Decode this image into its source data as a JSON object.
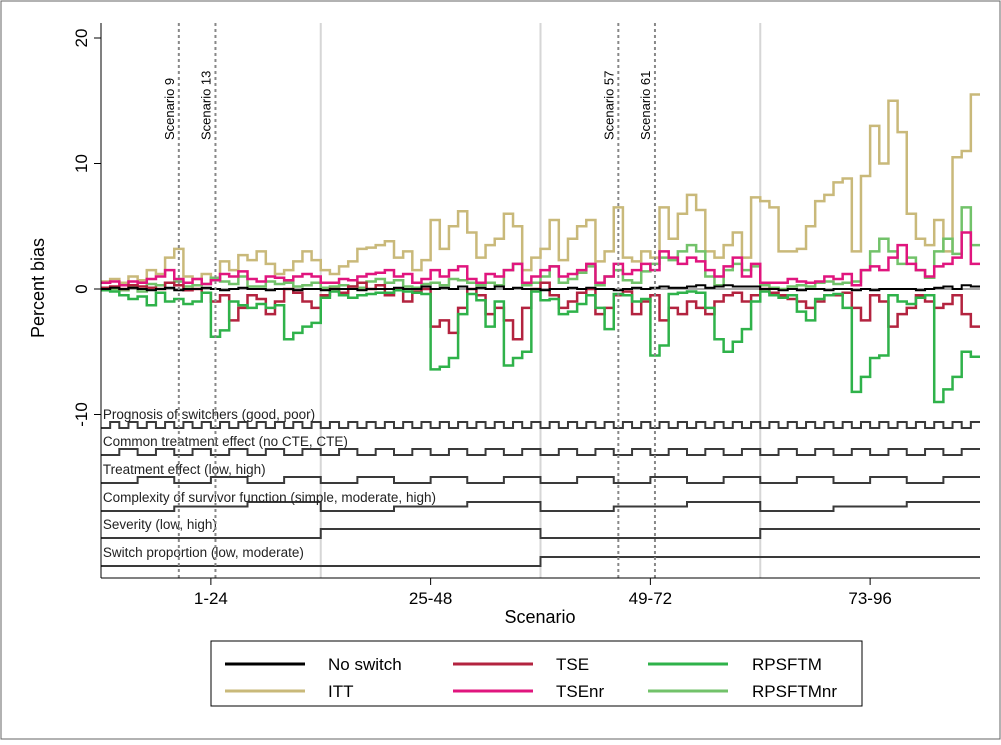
{
  "chart_data": {
    "type": "line",
    "step": true,
    "xlabel": "Scenario",
    "ylabel": "Percent bias",
    "xlim": [
      0.5,
      96.5
    ],
    "ylim": [
      -11,
      21
    ],
    "yticks": [
      -10,
      0,
      10,
      20
    ],
    "yticklabels": [
      "-10",
      "0",
      "10",
      "20"
    ],
    "xtick_groups": [
      {
        "label": "1-24",
        "center": 12.5
      },
      {
        "label": "25-48",
        "center": 36.5
      },
      {
        "label": "49-72",
        "center": 60.5
      },
      {
        "label": "73-96",
        "center": 84.5
      }
    ],
    "group_separators": [
      24.5,
      48.5,
      72.5
    ],
    "scenario_markers": [
      {
        "label": "Scenario 9",
        "x": 9
      },
      {
        "label": "Scenario 13",
        "x": 13
      },
      {
        "label": "Scenario 57",
        "x": 57
      },
      {
        "label": "Scenario 61",
        "x": 61
      }
    ],
    "nested_factors": [
      {
        "label": "Prognosis of switchers (good, poor)",
        "period": 1,
        "levels": 2
      },
      {
        "label": "Common treatment effect (no CTE, CTE)",
        "period": 2,
        "levels": 2
      },
      {
        "label": "Treatment effect (low, high)",
        "period": 4,
        "levels": 2
      },
      {
        "label": "Complexity of survivor function (simple, moderate, high)",
        "period": 8,
        "levels": 3
      },
      {
        "label": "Severity (low, high)",
        "period": 24,
        "levels": 2
      },
      {
        "label": "Switch proportion (low, moderate)",
        "period": 48,
        "levels": 2
      }
    ],
    "colors": {
      "No switch": "#000000",
      "ITT": "#c9b97a",
      "TSE": "#b3233f",
      "TSEnr": "#e0157e",
      "RPSFTM": "#2fb24a",
      "RPSFTMnr": "#72c26a"
    },
    "legend": {
      "placement": "bottom",
      "columns": 3,
      "entries": [
        "No switch",
        "TSE",
        "RPSFTM",
        "ITT",
        "TSEnr",
        "RPSFTMnr"
      ]
    },
    "series": [
      {
        "name": "No switch",
        "values": [
          0.0,
          0.1,
          0.0,
          0.1,
          0.0,
          -0.1,
          0.0,
          0.1,
          -0.1,
          0.0,
          0.0,
          0.1,
          0.0,
          -0.1,
          0.0,
          0.1,
          0.0,
          0.0,
          -0.1,
          0.0,
          0.0,
          -0.1,
          0.0,
          0.0,
          -0.1,
          0.0,
          0.0,
          0.0,
          -0.1,
          0.0,
          0.0,
          0.0,
          0.1,
          0.0,
          0.0,
          0.2,
          0.0,
          0.1,
          0.0,
          0.2,
          0.0,
          0.1,
          0.0,
          0.2,
          0.0,
          0.1,
          0.0,
          0.0,
          -0.1,
          0.0,
          0.0,
          0.1,
          0.0,
          0.1,
          0.0,
          0.0,
          -0.1,
          0.0,
          0.1,
          0.0,
          0.1,
          0.2,
          0.1,
          0.1,
          0.2,
          0.3,
          0.1,
          0.2,
          0.3,
          0.2,
          0.2,
          0.2,
          0.0,
          0.0,
          -0.1,
          0.0,
          -0.1,
          0.0,
          0.0,
          -0.1,
          0.0,
          0.0,
          -0.1,
          0.0,
          -0.1,
          0.0,
          0.0,
          0.0,
          0.0,
          -0.1,
          0.0,
          0.1,
          0.2,
          0.0,
          0.3,
          0.2
        ]
      },
      {
        "name": "ITT",
        "values": [
          0.6,
          0.8,
          0.5,
          1.0,
          0.7,
          1.5,
          1.2,
          2.5,
          3.2,
          1.0,
          0.8,
          1.2,
          0.9,
          2.2,
          1.5,
          2.7,
          2.3,
          3.0,
          2.0,
          1.2,
          1.5,
          2.2,
          3.0,
          2.3,
          1.5,
          1.2,
          1.8,
          2.2,
          3.2,
          3.3,
          3.5,
          3.8,
          2.5,
          3.0,
          1.5,
          2.3,
          5.5,
          3.2,
          5.0,
          6.2,
          4.5,
          2.5,
          3.5,
          4.0,
          6.0,
          5.0,
          1.5,
          2.5,
          3.2,
          5.5,
          2.3,
          4.0,
          5.0,
          5.5,
          2.2,
          3.0,
          6.5,
          2.5,
          2.2,
          3.0,
          2.5,
          6.5,
          4.0,
          6.0,
          7.5,
          6.3,
          3.0,
          2.5,
          3.5,
          4.5,
          2.5,
          7.3,
          7.0,
          6.5,
          3.0,
          3.0,
          3.2,
          5.0,
          7.0,
          7.5,
          8.5,
          8.8,
          3.0,
          9.0,
          13.0,
          10.0,
          15.0,
          12.5,
          6.0,
          4.0,
          3.5,
          5.5,
          3.0,
          10.5,
          11.0,
          15.5
        ]
      },
      {
        "name": "TSE",
        "values": [
          0.1,
          0.2,
          0.0,
          0.3,
          0.2,
          0.1,
          0.0,
          0.5,
          0.3,
          -0.1,
          0.0,
          -0.3,
          -1.0,
          -0.5,
          -2.5,
          -1.5,
          -0.5,
          -0.8,
          -2.0,
          -1.0,
          0.0,
          -0.3,
          -1.0,
          -1.5,
          -0.5,
          0.0,
          -0.3,
          0.2,
          0.5,
          0.0,
          0.3,
          -0.5,
          0.0,
          -1.0,
          -0.2,
          0.0,
          -3.0,
          -2.5,
          -3.5,
          -1.5,
          0.0,
          -0.5,
          -2.0,
          -1.5,
          -2.5,
          -4.0,
          -1.5,
          0.0,
          0.5,
          -0.5,
          -1.5,
          -1.0,
          -0.3,
          0.0,
          -2.0,
          -1.5,
          -0.5,
          -0.2,
          -2.0,
          -1.0,
          -0.5,
          -2.5,
          -1.5,
          -2.0,
          -1.0,
          -1.5,
          -2.0,
          -1.0,
          -0.5,
          -0.3,
          -1.0,
          -0.5,
          0.0,
          -0.3,
          -0.5,
          -0.8,
          -1.0,
          -1.5,
          -1.0,
          -0.5,
          -0.5,
          -0.3,
          -1.5,
          -2.5,
          -0.5,
          -1.0,
          -3.0,
          -2.0,
          -1.5,
          -0.5,
          -1.0,
          -1.5,
          -1.2,
          -0.5,
          -2.0,
          -3.0
        ]
      },
      {
        "name": "TSEnr",
        "values": [
          0.5,
          0.6,
          0.3,
          0.6,
          0.5,
          0.8,
          1.0,
          1.5,
          0.8,
          0.5,
          0.8,
          0.4,
          0.7,
          1.2,
          1.0,
          1.4,
          0.8,
          0.6,
          1.0,
          0.9,
          0.7,
          1.0,
          1.2,
          1.0,
          0.5,
          0.5,
          0.8,
          0.7,
          1.0,
          1.2,
          1.3,
          1.5,
          1.0,
          1.2,
          0.5,
          0.8,
          1.5,
          1.0,
          1.5,
          1.8,
          0.8,
          0.5,
          1.2,
          1.0,
          1.5,
          2.0,
          0.5,
          1.0,
          1.5,
          1.8,
          1.0,
          1.2,
          1.5,
          2.0,
          0.5,
          1.0,
          2.0,
          1.2,
          1.5,
          2.0,
          1.5,
          3.0,
          2.5,
          2.0,
          2.5,
          2.2,
          1.5,
          1.0,
          1.8,
          2.5,
          1.0,
          2.0,
          0.5,
          0.5,
          0.5,
          0.8,
          0.6,
          0.5,
          0.6,
          1.0,
          0.8,
          1.2,
          0.3,
          1.5,
          1.8,
          1.5,
          2.5,
          3.5,
          2.0,
          1.5,
          1.0,
          1.8,
          2.0,
          2.5,
          4.5,
          2.0
        ]
      },
      {
        "name": "RPSFTM",
        "values": [
          -0.1,
          -0.2,
          -0.5,
          -0.8,
          -0.6,
          -1.3,
          -0.3,
          -1.0,
          -0.8,
          -1.2,
          -1.0,
          -0.3,
          -3.8,
          -3.3,
          -1.0,
          -1.3,
          -1.5,
          -1.2,
          -1.5,
          -1.3,
          -4.0,
          -3.5,
          -3.0,
          -2.7,
          -0.7,
          -0.2,
          -0.5,
          -0.7,
          -0.5,
          -0.4,
          -0.3,
          -0.3,
          -0.1,
          -0.2,
          -0.3,
          -0.4,
          -6.4,
          -6.2,
          -5.5,
          -2.0,
          -0.4,
          -0.9,
          -3.0,
          -1.0,
          -6.1,
          -5.5,
          -5.0,
          -0.2,
          -0.9,
          -0.8,
          -2.0,
          -1.8,
          -1.2,
          -0.5,
          -1.5,
          -3.2,
          -0.4,
          -0.5,
          -1.0,
          -0.8,
          -5.3,
          -4.5,
          -0.4,
          -0.3,
          -0.2,
          -0.3,
          -1.5,
          -4.0,
          -5.0,
          -4.2,
          -3.2,
          -1.0,
          -0.2,
          -0.5,
          -0.7,
          -0.5,
          -1.8,
          -2.5,
          -0.8,
          -0.5,
          -0.4,
          -1.5,
          -8.2,
          -7.0,
          -5.5,
          -5.3,
          -0.5,
          -1.0,
          -1.2,
          -0.7,
          -0.5,
          -9.0,
          -8.0,
          -7.0,
          -5.0,
          -5.4
        ]
      },
      {
        "name": "RPSFTMnr",
        "values": [
          0.1,
          0.0,
          -0.1,
          0.2,
          -0.2,
          0.4,
          0.3,
          0.5,
          0.6,
          0.2,
          0.3,
          0.4,
          0.9,
          0.6,
          0.4,
          1.0,
          0.2,
          0.2,
          0.6,
          0.4,
          0.5,
          0.2,
          0.3,
          0.5,
          0.1,
          0.2,
          0.3,
          0.2,
          0.1,
          0.6,
          0.8,
          0.5,
          0.7,
          0.2,
          0.1,
          0.4,
          0.5,
          0.3,
          0.8,
          0.7,
          0.5,
          0.3,
          0.5,
          0.3,
          1.5,
          2.0,
          0.3,
          0.5,
          1.0,
          1.8,
          0.5,
          0.8,
          1.3,
          1.8,
          0.3,
          1.0,
          1.5,
          0.7,
          0.5,
          1.4,
          2.0,
          2.5,
          2.3,
          3.0,
          3.5,
          3.0,
          1.0,
          0.3,
          1.5,
          2.0,
          1.5,
          1.8,
          0.3,
          0.1,
          0.0,
          0.2,
          0.3,
          0.2,
          0.5,
          0.6,
          0.4,
          0.5,
          0.6,
          1.5,
          3.0,
          4.0,
          3.0,
          2.0,
          2.5,
          1.5,
          0.9,
          3.0,
          4.0,
          2.8,
          6.5,
          3.5
        ]
      }
    ]
  }
}
